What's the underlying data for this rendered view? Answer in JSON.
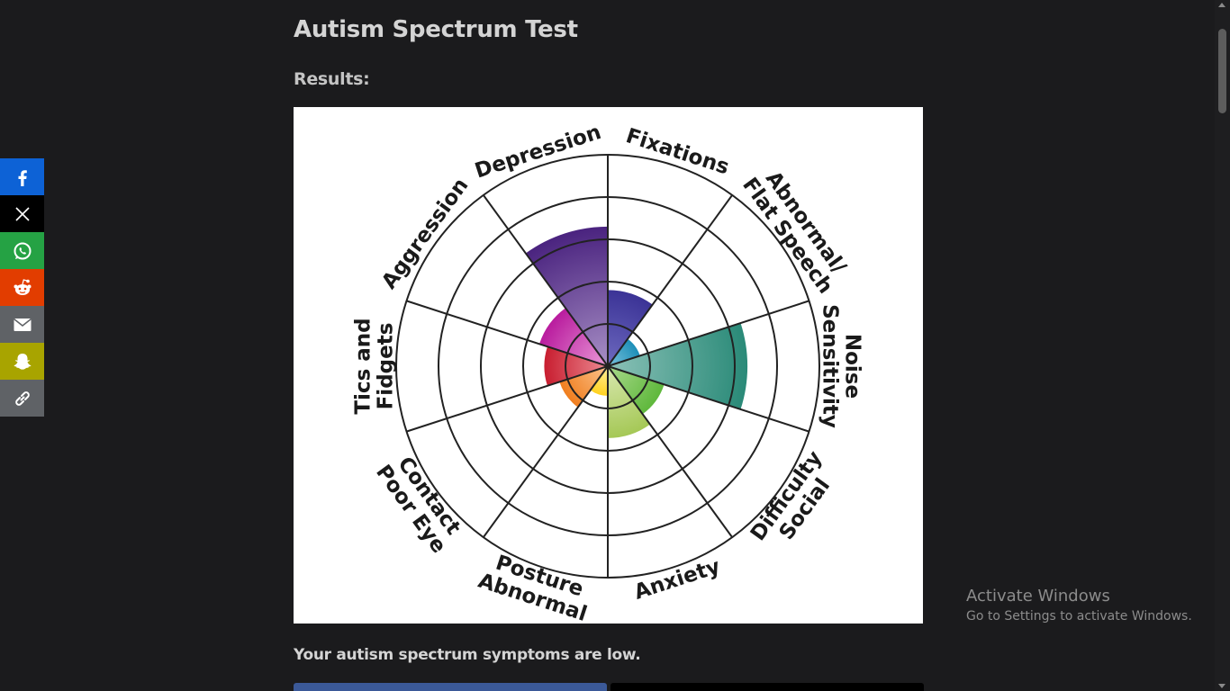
{
  "page": {
    "title": "Autism Spectrum Test",
    "results_label": "Results:",
    "result_text": "Your autism spectrum symptoms are low."
  },
  "share": [
    {
      "name": "facebook",
      "color": "#0d62d6"
    },
    {
      "name": "x",
      "color": "#000000"
    },
    {
      "name": "whatsapp",
      "color": "#25a244"
    },
    {
      "name": "reddit",
      "color": "#e23d00"
    },
    {
      "name": "email",
      "color": "#5f6266"
    },
    {
      "name": "snapchat",
      "color": "#a8a400"
    },
    {
      "name": "copy-link",
      "color": "#5f6266"
    }
  ],
  "watermark": {
    "title": "Activate Windows",
    "subtitle": "Go to Settings to activate Windows."
  },
  "chart_data": {
    "type": "radial-bar",
    "rings": 5,
    "categories": [
      {
        "label": [
          "Fixations"
        ],
        "value": 1.8,
        "colors": [
          "#3b3396",
          "#6e6ac0"
        ]
      },
      {
        "label": [
          "Abnormal/",
          "Flat Speech"
        ],
        "value": 0.8,
        "colors": [
          "#1e8fb8",
          "#7cc3dd"
        ]
      },
      {
        "label": [
          "Noise",
          "Sensitivity"
        ],
        "value": 3.3,
        "colors": [
          "#2a8a78",
          "#8cc2b8"
        ]
      },
      {
        "label": [
          "Social",
          "Difficulty"
        ],
        "value": 1.4,
        "colors": [
          "#5fb83c",
          "#a9d98c"
        ]
      },
      {
        "label": [
          "Anxiety"
        ],
        "value": 1.7,
        "colors": [
          "#a5c856",
          "#d9e8b0"
        ]
      },
      {
        "label": [
          "Abnormal",
          "Posture"
        ],
        "value": 0.7,
        "colors": [
          "#ffd21f",
          "#fff0a0"
        ]
      },
      {
        "label": [
          "Poor Eye",
          "Contact"
        ],
        "value": 1.2,
        "colors": [
          "#f07e1e",
          "#fbc48f"
        ]
      },
      {
        "label": [
          "Tics and",
          "Fidgets"
        ],
        "value": 1.5,
        "colors": [
          "#c81e30",
          "#ec8a92"
        ]
      },
      {
        "label": [
          "Aggression"
        ],
        "value": 1.7,
        "colors": [
          "#b91c9e",
          "#ea9ad8"
        ]
      },
      {
        "label": [
          "Depression"
        ],
        "value": 3.3,
        "colors": [
          "#4a237f",
          "#a890c6"
        ]
      }
    ]
  }
}
